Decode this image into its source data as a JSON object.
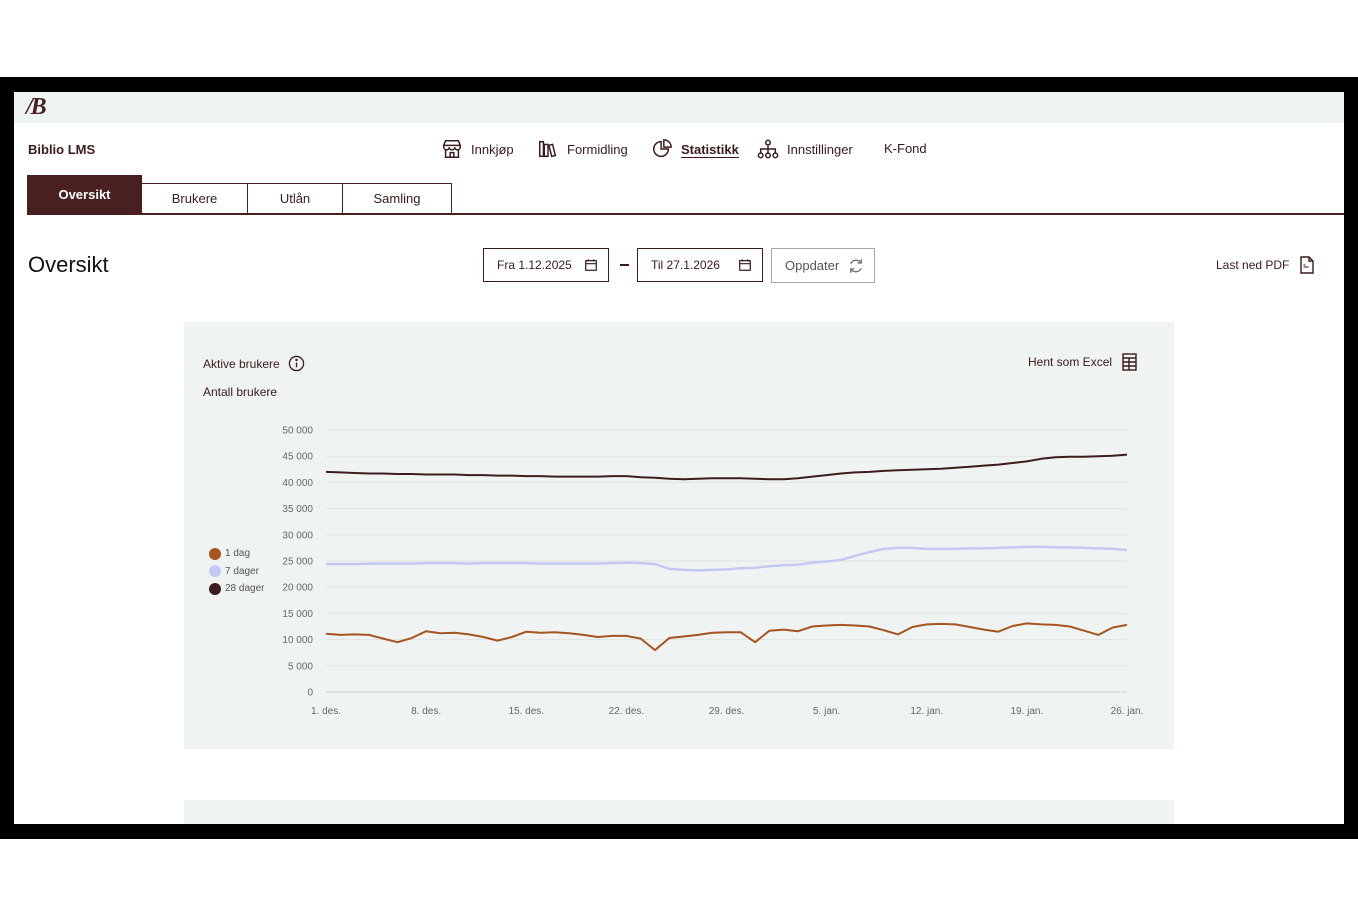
{
  "app": {
    "logo": "/B",
    "name": "Biblio LMS"
  },
  "nav": [
    {
      "label": "Innkjøp",
      "icon": "store-icon"
    },
    {
      "label": "Formidling",
      "icon": "books-icon"
    },
    {
      "label": "Statistikk",
      "icon": "pie-chart-icon",
      "active": true
    },
    {
      "label": "Innstillinger",
      "icon": "hierarchy-icon"
    },
    {
      "label": "K-Fond",
      "icon": ""
    }
  ],
  "tabs": [
    {
      "label": "Oversikt",
      "active": true
    },
    {
      "label": "Brukere"
    },
    {
      "label": "Utlån"
    },
    {
      "label": "Samling"
    }
  ],
  "page": {
    "title": "Oversikt"
  },
  "filters": {
    "from_label": "Fra 1.12.2025",
    "to_label": "Til 27.1.2026",
    "update_label": "Oppdater",
    "pdf_label": "Last ned PDF"
  },
  "card": {
    "title": "Aktive brukere",
    "excel_label": "Hent som Excel",
    "subtitle": "Antall brukere"
  },
  "colors": {
    "brand": "#4a1f1f",
    "series_1": "#a65420",
    "series_7": "#c4c9f2",
    "series_28": "#3e1c1c",
    "card_bg": "#eff4f3"
  },
  "chart_data": {
    "type": "line",
    "title": "Aktive brukere",
    "ylabel": "Antall brukere",
    "ylim": [
      0,
      50000
    ],
    "yticks": [
      "0",
      "5 000",
      "10 000",
      "15 000",
      "20 000",
      "25 000",
      "30 000",
      "35 000",
      "40 000",
      "45 000",
      "50 000"
    ],
    "xticks": [
      "1. des.",
      "8. des.",
      "15. des.",
      "22. des.",
      "29. des.",
      "5. jan.",
      "12. jan.",
      "19. jan.",
      "26. jan."
    ],
    "grid": true,
    "legend_position": "left",
    "x_start": "2025-12-01",
    "x_end": "2026-01-26",
    "series": [
      {
        "name": "1 dag",
        "color": "#a65420",
        "values": [
          11100,
          10900,
          11000,
          10900,
          10200,
          9500,
          10300,
          11600,
          11200,
          11300,
          11000,
          10500,
          9800,
          10500,
          11500,
          11300,
          11400,
          11200,
          10900,
          10500,
          10700,
          10700,
          10200,
          8000,
          10300,
          10600,
          10900,
          11300,
          11400,
          11400,
          9500,
          11700,
          11900,
          11600,
          12500,
          12700,
          12800,
          12700,
          12500,
          11800,
          11000,
          12400,
          12900,
          13000,
          12900,
          12400,
          11900,
          11500,
          12600,
          13100,
          12900,
          12800,
          12500,
          11700,
          10900,
          12300,
          12800
        ],
        "value_labels": []
      },
      {
        "name": "7 dager",
        "color": "#c4c9f2",
        "values": [
          24400,
          24400,
          24400,
          24500,
          24500,
          24500,
          24500,
          24600,
          24600,
          24600,
          24500,
          24600,
          24600,
          24600,
          24600,
          24500,
          24500,
          24500,
          24500,
          24500,
          24600,
          24700,
          24600,
          24400,
          23500,
          23300,
          23200,
          23300,
          23400,
          23600,
          23700,
          24000,
          24200,
          24300,
          24700,
          24900,
          25200,
          26000,
          26700,
          27300,
          27500,
          27500,
          27300,
          27300,
          27300,
          27400,
          27400,
          27500,
          27600,
          27700,
          27700,
          27600,
          27600,
          27500,
          27400,
          27300,
          27100
        ]
      },
      {
        "name": "28 dager",
        "color": "#3e1c1c",
        "values": [
          42000,
          41900,
          41800,
          41700,
          41700,
          41600,
          41600,
          41500,
          41500,
          41500,
          41400,
          41400,
          41300,
          41300,
          41200,
          41200,
          41100,
          41100,
          41100,
          41100,
          41200,
          41200,
          41000,
          40900,
          40700,
          40600,
          40700,
          40800,
          40800,
          40800,
          40700,
          40600,
          40600,
          40800,
          41100,
          41400,
          41700,
          41900,
          42000,
          42200,
          42300,
          42400,
          42500,
          42600,
          42800,
          43000,
          43200,
          43400,
          43700,
          44000,
          44500,
          44800,
          44900,
          44900,
          45000,
          45100,
          45300
        ]
      }
    ]
  }
}
